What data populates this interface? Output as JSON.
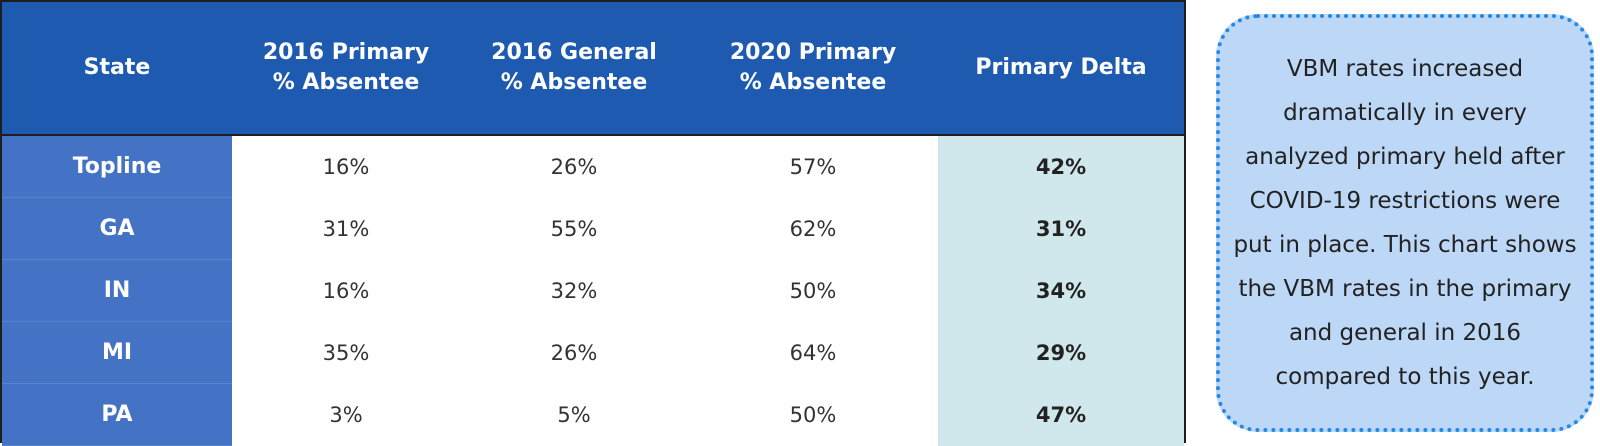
{
  "chart_data": {
    "type": "table",
    "columns": [
      "State",
      "2016 Primary % Absentee",
      "2016 General % Absentee",
      "2020 Primary % Absentee",
      "Primary Delta"
    ],
    "header_lines": [
      [
        "State"
      ],
      [
        "2016 Primary",
        "% Absentee"
      ],
      [
        "2016 General",
        "% Absentee"
      ],
      [
        "2020 Primary",
        "% Absentee"
      ],
      [
        "Primary Delta"
      ]
    ],
    "rows": [
      {
        "state": "Topline",
        "p2016": "16%",
        "g2016": "26%",
        "p2020": "57%",
        "delta": "42%"
      },
      {
        "state": "GA",
        "p2016": "31%",
        "g2016": "55%",
        "p2020": "62%",
        "delta": "31%"
      },
      {
        "state": "IN",
        "p2016": "16%",
        "g2016": "32%",
        "p2020": "50%",
        "delta": "34%"
      },
      {
        "state": "MI",
        "p2016": "35%",
        "g2016": "26%",
        "p2020": "64%",
        "delta": "29%"
      },
      {
        "state": "PA",
        "p2016": "3%",
        "g2016": "5%",
        "p2020": "50%",
        "delta": "47%"
      }
    ]
  },
  "note": {
    "text": "VBM rates increased dramatically in every analyzed primary held after COVID-19 restrictions were put in place. This chart shows the VBM rates in the primary and general in 2016 compared to this year."
  },
  "colors": {
    "header_bg": "#1e5bb0",
    "state_col_bg": "#4472c4",
    "delta_col_bg": "#d0e8ec",
    "note_bg": "#bdd7f7",
    "note_border": "#2389e6"
  }
}
